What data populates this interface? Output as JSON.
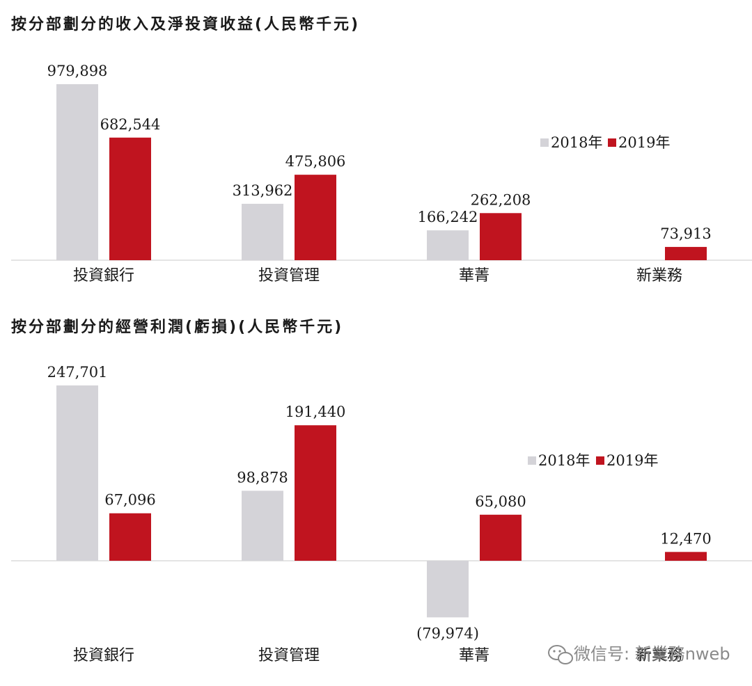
{
  "chart_data": [
    {
      "type": "bar",
      "title": "按分部劃分的收入及淨投資收益(人民幣千元)",
      "categories": [
        "投資銀行",
        "投資管理",
        "華菁",
        "新業務"
      ],
      "series": [
        {
          "name": "2018年",
          "values": [
            979898,
            313962,
            166242,
            null
          ],
          "labels": [
            "979,898",
            "313,962",
            "166,242",
            ""
          ],
          "color": "#d4d3d8"
        },
        {
          "name": "2019年",
          "values": [
            682544,
            475806,
            262208,
            73913
          ],
          "labels": [
            "682,544",
            "475,806",
            "262,208",
            "73,913"
          ],
          "color": "#c0141f"
        }
      ],
      "xlabel": "",
      "ylabel": "",
      "legend": "top-right",
      "grid": false
    },
    {
      "type": "bar",
      "title": "按分部劃分的經營利潤(虧損)(人民幣千元)",
      "categories": [
        "投資銀行",
        "投資管理",
        "華菁",
        "新業務"
      ],
      "series": [
        {
          "name": "2018年",
          "values": [
            247701,
            98878,
            -79974,
            null
          ],
          "labels": [
            "247,701",
            "98,878",
            "(79,974)",
            ""
          ],
          "color": "#d4d3d8"
        },
        {
          "name": "2019年",
          "values": [
            67096,
            191440,
            65080,
            12470
          ],
          "labels": [
            "67,096",
            "191,440",
            "65,080",
            "12,470"
          ],
          "color": "#c0141f"
        }
      ],
      "xlabel": "",
      "ylabel": "",
      "legend": "top-right",
      "grid": false
    }
  ],
  "watermark": {
    "text": "微信号: 新業務nweb",
    "icon": "wechat-icon"
  }
}
